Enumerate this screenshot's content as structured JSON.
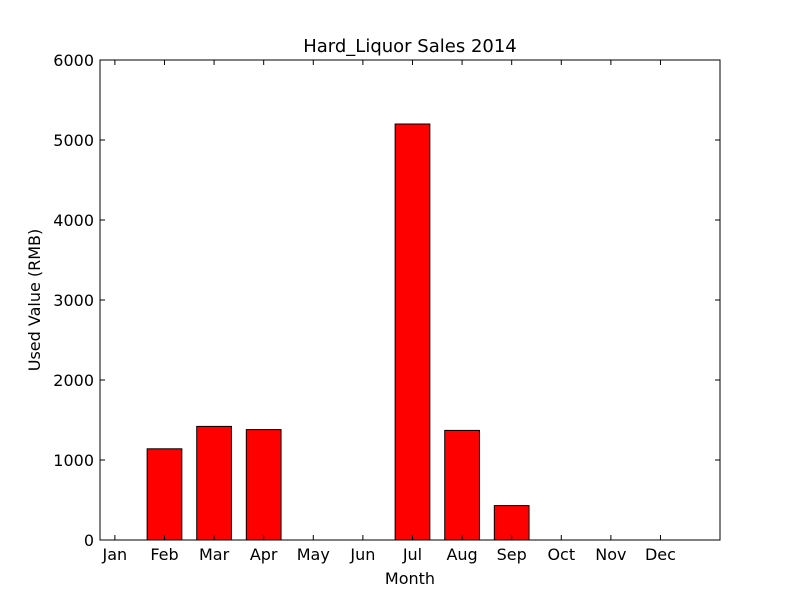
{
  "chart_data": {
    "type": "bar",
    "title": "Hard_Liquor Sales 2014",
    "xlabel": "Month",
    "ylabel": "Used Value (RMB)",
    "categories": [
      "Jan",
      "Feb",
      "Mar",
      "Apr",
      "May",
      "Jun",
      "Jul",
      "Aug",
      "Sep",
      "Oct",
      "Nov",
      "Dec"
    ],
    "values": [
      0,
      1140,
      1420,
      1380,
      0,
      0,
      5200,
      1370,
      430,
      0,
      0,
      0
    ],
    "ylim": [
      0,
      6000
    ],
    "yticks": [
      "0",
      "1000",
      "2000",
      "3000",
      "4000",
      "5000",
      "6000"
    ],
    "bar_color": "#ff0000",
    "edge_color": "#000000",
    "grid": false,
    "legend": "none"
  }
}
